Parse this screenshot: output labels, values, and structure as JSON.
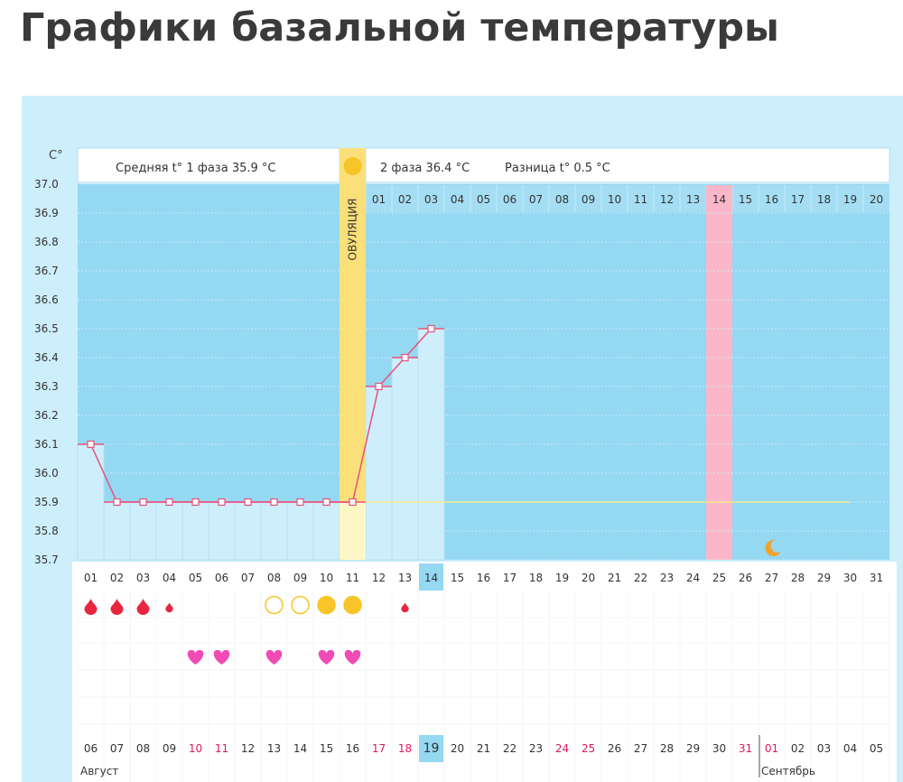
{
  "page": {
    "title": "Графики базальной температуры"
  },
  "colors": {
    "plot_bg": "#94d8f2",
    "card_bg": "#cdeefb",
    "bar_fill": "#cfeefc",
    "line": "#e8527a",
    "ovulation": "#fbe07a",
    "average_line": "#f3ec8a",
    "highlight_day": "#fbb7c9",
    "today": "#94d8f2",
    "red_date": "#e2185a"
  },
  "chart_data": {
    "type": "line",
    "ylabel": "C°",
    "ylim": [
      35.7,
      37.0
    ],
    "y_ticks": [
      "37.0",
      "36.9",
      "36.8",
      "36.7",
      "36.6",
      "36.5",
      "36.4",
      "36.3",
      "36.2",
      "36.1",
      "36.0",
      "35.9",
      "35.8",
      "35.7"
    ],
    "cycle_days": [
      "01",
      "02",
      "03",
      "04",
      "05",
      "06",
      "07",
      "08",
      "09",
      "10",
      "11",
      "12",
      "13",
      "14",
      "15",
      "16",
      "17",
      "18",
      "19",
      "20",
      "21",
      "22",
      "23",
      "24",
      "25",
      "26",
      "27",
      "28",
      "29",
      "30",
      "31"
    ],
    "temperatures": [
      36.1,
      35.9,
      35.9,
      35.9,
      35.9,
      35.9,
      35.9,
      35.9,
      35.9,
      35.9,
      35.9,
      36.3,
      36.4,
      36.5
    ],
    "phase1": {
      "label": "Средняя t° 1 фаза",
      "value": "35.9 °C"
    },
    "phase2": {
      "label": "2 фаза",
      "value": "36.4 °C"
    },
    "difference": {
      "label": "Разница t°",
      "value": "0.5 °C"
    },
    "average_line_value": 35.9,
    "ovulation_day": 11,
    "ovulation_label": "ОВУЛЯЦИЯ",
    "phase2_days": [
      "01",
      "02",
      "03",
      "04",
      "05",
      "06",
      "07",
      "08",
      "09",
      "10",
      "11",
      "12",
      "13",
      "14",
      "15",
      "16",
      "17",
      "18",
      "19",
      "20"
    ],
    "highlight_cycle_day": 25,
    "today_cycle_day": 14,
    "moon_cycle_day": 27,
    "calendar_dates": [
      {
        "d": "06",
        "red": false
      },
      {
        "d": "07",
        "red": false
      },
      {
        "d": "08",
        "red": false
      },
      {
        "d": "09",
        "red": false
      },
      {
        "d": "10",
        "red": true
      },
      {
        "d": "11",
        "red": true
      },
      {
        "d": "12",
        "red": false
      },
      {
        "d": "13",
        "red": false
      },
      {
        "d": "14",
        "red": false
      },
      {
        "d": "15",
        "red": false
      },
      {
        "d": "16",
        "red": false
      },
      {
        "d": "17",
        "red": true
      },
      {
        "d": "18",
        "red": true
      },
      {
        "d": "19",
        "red": false
      },
      {
        "d": "20",
        "red": false
      },
      {
        "d": "21",
        "red": false
      },
      {
        "d": "22",
        "red": false
      },
      {
        "d": "23",
        "red": false
      },
      {
        "d": "24",
        "red": true
      },
      {
        "d": "25",
        "red": true
      },
      {
        "d": "26",
        "red": false
      },
      {
        "d": "27",
        "red": false
      },
      {
        "d": "28",
        "red": false
      },
      {
        "d": "29",
        "red": false
      },
      {
        "d": "30",
        "red": false
      },
      {
        "d": "31",
        "red": true
      },
      {
        "d": "01",
        "red": true
      },
      {
        "d": "02",
        "red": false
      },
      {
        "d": "03",
        "red": false
      },
      {
        "d": "04",
        "red": false
      },
      {
        "d": "05",
        "red": false
      }
    ],
    "months": [
      {
        "name": "Август",
        "start_day": 1
      },
      {
        "name": "Сентябрь",
        "start_day": 27
      }
    ],
    "bleeding_marks": [
      {
        "day": 1,
        "size": "large"
      },
      {
        "day": 2,
        "size": "large"
      },
      {
        "day": 3,
        "size": "large"
      },
      {
        "day": 4,
        "size": "small"
      },
      {
        "day": 13,
        "size": "small"
      }
    ],
    "mucus_marks": [
      {
        "day": 8,
        "filled": false
      },
      {
        "day": 9,
        "filled": false
      },
      {
        "day": 10,
        "filled": true
      },
      {
        "day": 11,
        "filled": true
      }
    ],
    "intercourse_days": [
      5,
      6,
      8,
      10,
      11
    ]
  }
}
